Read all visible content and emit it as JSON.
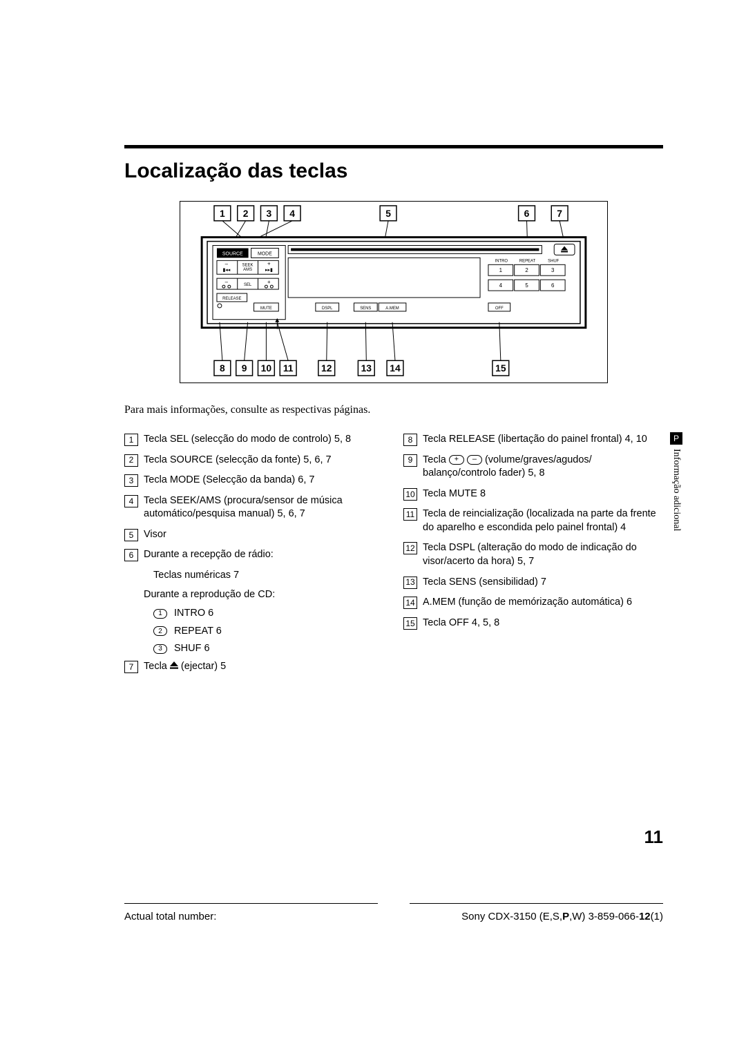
{
  "title": "Localização das teclas",
  "intro": "Para mais informações, consulte as respectivas páginas.",
  "side_badge": "P",
  "side_text": "Informação adicional",
  "page_number": "11",
  "footer_left": "Actual total number:",
  "footer_right_a": "Sony CDX-3150 (E,S,",
  "footer_right_b": "P",
  "footer_right_c": ",W)  3-859-066-",
  "footer_right_d": "12",
  "footer_right_e": "(1)",
  "diagram": {
    "top_refs": [
      "1",
      "2",
      "3",
      "4",
      "5",
      "6",
      "7"
    ],
    "bottom_refs": [
      "8",
      "9",
      "10",
      "11",
      "12",
      "13",
      "14",
      "15"
    ],
    "panel": {
      "source": "SOURCE",
      "mode": "MODE",
      "seek": "SEEK",
      "ams": "AMS",
      "sel": "SEL",
      "release": "RELEASE",
      "mute": "MUTE",
      "dspl": "DSPL",
      "sens": "SENS",
      "amem": "A.MEM",
      "off": "OFF",
      "intro": "INTRO",
      "repeat": "REPEAT",
      "shuf": "SHUF",
      "preset": [
        "1",
        "2",
        "3",
        "4",
        "5",
        "6"
      ]
    }
  },
  "left": {
    "e1": "Tecla SEL (selecção do modo de controlo)  5, 8",
    "e2": "Tecla SOURCE (selecção da fonte)  5, 6, 7",
    "e3": "Tecla  MODE (Selecção da banda)  6, 7",
    "e4": "Tecla SEEK/AMS (procura/sensor de música automático/pesquisa manual)  5, 6, 7",
    "e5": "Visor",
    "e6": "Durante a recepção de rádio:",
    "e6a": "Teclas numéricas  7",
    "e6b": "Durante a reprodução de CD:",
    "e6c1": "INTRO 6",
    "e6c2": "REPEAT 6",
    "e6c3": "SHUF 6",
    "e7a": "Tecla ",
    "e7b": " (ejectar)  5"
  },
  "right": {
    "e8": "Tecla RELEASE (libertação do painel frontal)  4, 10",
    "e9a": "Tecla ",
    "e9b": " (volume/graves/agudos/ balanço/controlo fader)  5, 8",
    "e10": "Tecla MUTE  8",
    "e11": "Tecla de reincialização (localizada na parte da frente do aparelho e escondida pelo painel frontal)  4",
    "e12": "Tecla DSPL (alteração do modo de indicação do visor/acerto da hora)  5, 7",
    "e13": "Tecla SENS (sensibilidad)  7",
    "e14": "A.MEM (função de memórização automática)  6",
    "e15": "Tecla OFF  4, 5, 8"
  }
}
